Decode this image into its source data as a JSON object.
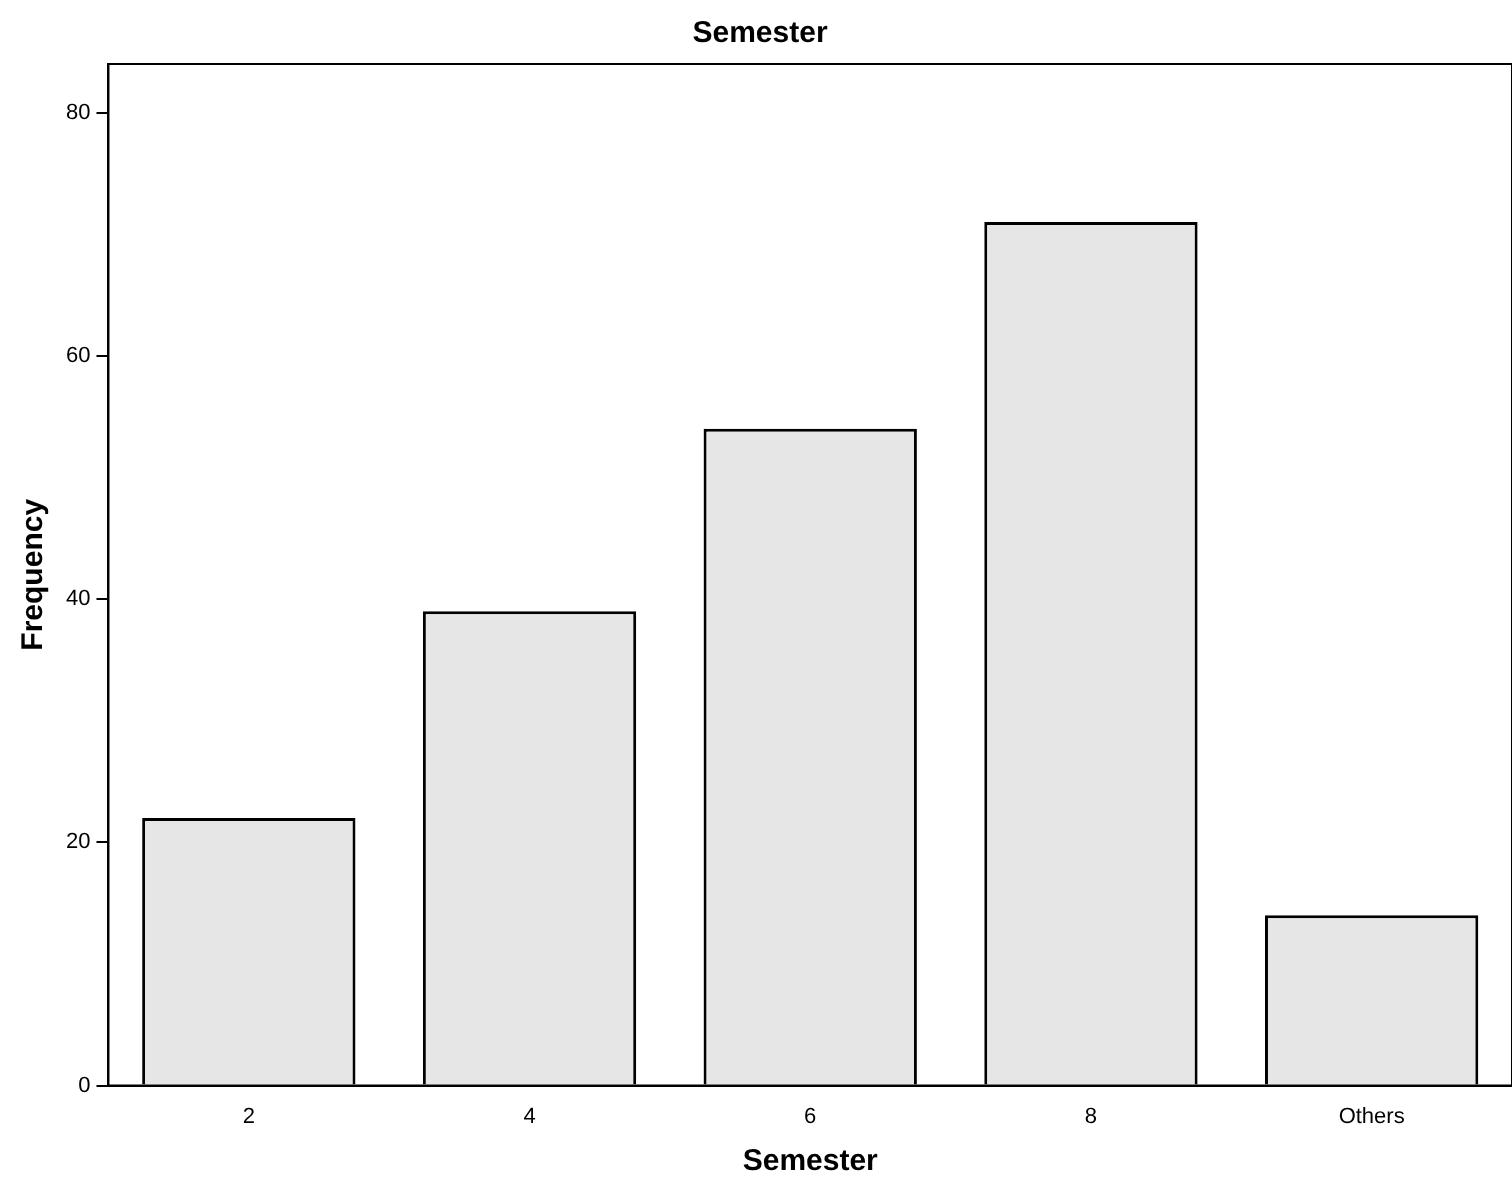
{
  "chart_data": {
    "type": "bar",
    "title": "Semester",
    "xlabel": "Semester",
    "ylabel": "Frequency",
    "categories": [
      "2",
      "4",
      "6",
      "8",
      "Others"
    ],
    "values": [
      22,
      39,
      54,
      71,
      14
    ],
    "color": "#e6e6e6",
    "ylim": [
      0,
      84
    ],
    "yticks": [
      0,
      20,
      40,
      60,
      80
    ],
    "grid": false,
    "legend": false
  }
}
